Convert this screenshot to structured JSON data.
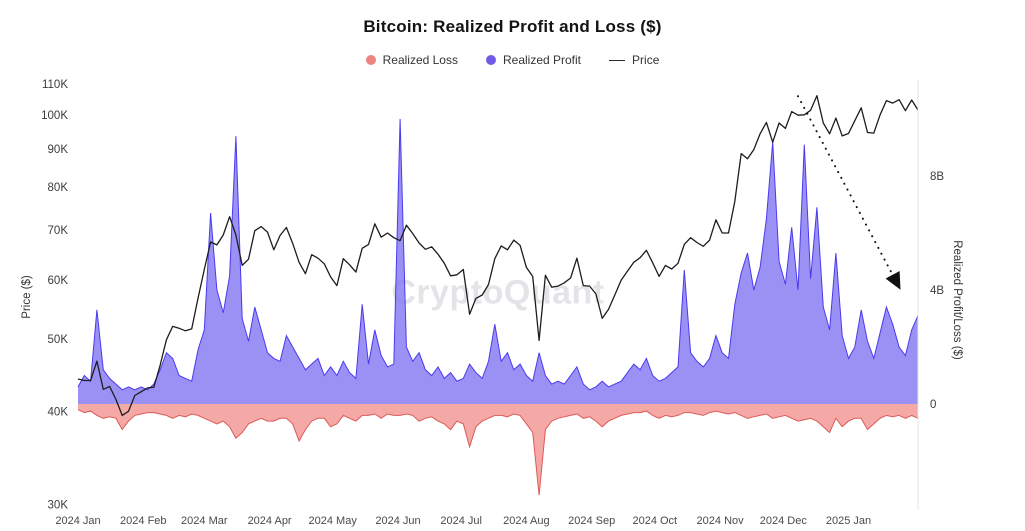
{
  "title": "Bitcoin: Realized Profit and Loss ($)",
  "watermark": "CryptoQuant",
  "legend": [
    {
      "label": "Realized Loss",
      "color": "#ee837f",
      "type": "dot"
    },
    {
      "label": "Realized Profit",
      "color": "#6f5be8",
      "type": "dot"
    },
    {
      "label": "Price",
      "color": "#2a2a2a",
      "type": "line"
    }
  ],
  "chart_data": {
    "type": "combo",
    "title": "Bitcoin: Realized Profit and Loss ($)",
    "sample_interval_days": 3,
    "total_days": 399,
    "axes": {
      "left": {
        "label": "Price ($)",
        "scale": "log",
        "unit": "USD thousands",
        "ticks": [
          {
            "label": "110K",
            "value": 110
          },
          {
            "label": "100K",
            "value": 100
          },
          {
            "label": "90K",
            "value": 90
          },
          {
            "label": "80K",
            "value": 80
          },
          {
            "label": "70K",
            "value": 70
          },
          {
            "label": "60K",
            "value": 60
          },
          {
            "label": "50K",
            "value": 50
          },
          {
            "label": "40K",
            "value": 40
          },
          {
            "label": "30K",
            "value": 30
          }
        ]
      },
      "right": {
        "label": "Realized Profit/Loss ($)",
        "scale": "linear",
        "unit": "USD billions",
        "ticks": [
          {
            "label": "8B",
            "value": 8
          },
          {
            "label": "4B",
            "value": 4
          },
          {
            "label": "0",
            "value": 0
          }
        ]
      },
      "x": {
        "ticks": [
          {
            "label": "2024 Jan",
            "day": 0
          },
          {
            "label": "2024 Feb",
            "day": 31
          },
          {
            "label": "2024 Mar",
            "day": 60
          },
          {
            "label": "2024 Apr",
            "day": 91
          },
          {
            "label": "2024 May",
            "day": 121
          },
          {
            "label": "2024 Jun",
            "day": 152
          },
          {
            "label": "2024 Jul",
            "day": 182
          },
          {
            "label": "2024 Aug",
            "day": 213
          },
          {
            "label": "2024 Sep",
            "day": 244
          },
          {
            "label": "2024 Oct",
            "day": 274
          },
          {
            "label": "2024 Nov",
            "day": 305
          },
          {
            "label": "2024 Dec",
            "day": 335
          },
          {
            "label": "2025 Jan",
            "day": 366
          }
        ]
      }
    },
    "series": [
      {
        "name": "Realized Loss",
        "type": "area",
        "axis": "right",
        "unit": "B",
        "color": "#f19490",
        "line_color": "#dd5a57",
        "values": [
          -0.2,
          -0.3,
          -0.25,
          -0.4,
          -0.5,
          -0.45,
          -0.5,
          -0.9,
          -0.6,
          -0.4,
          -0.35,
          -0.3,
          -0.3,
          -0.35,
          -0.4,
          -0.5,
          -0.4,
          -0.45,
          -0.35,
          -0.4,
          -0.5,
          -0.6,
          -0.7,
          -0.6,
          -0.8,
          -1.2,
          -1.0,
          -0.7,
          -0.6,
          -0.5,
          -0.6,
          -0.6,
          -0.5,
          -0.5,
          -0.7,
          -1.3,
          -0.9,
          -0.6,
          -0.5,
          -0.5,
          -0.8,
          -0.7,
          -0.4,
          -0.5,
          -0.6,
          -0.4,
          -0.4,
          -0.35,
          -0.5,
          -0.35,
          -0.4,
          -0.4,
          -0.35,
          -0.4,
          -0.6,
          -0.5,
          -0.45,
          -0.6,
          -0.7,
          -0.9,
          -0.6,
          -0.7,
          -1.5,
          -0.8,
          -0.6,
          -0.5,
          -0.4,
          -0.4,
          -0.45,
          -0.35,
          -0.4,
          -0.7,
          -1.0,
          -3.2,
          -0.9,
          -0.6,
          -0.5,
          -0.45,
          -0.4,
          -0.35,
          -0.5,
          -0.45,
          -0.6,
          -0.8,
          -0.6,
          -0.5,
          -0.4,
          -0.35,
          -0.3,
          -0.3,
          -0.25,
          -0.4,
          -0.5,
          -0.4,
          -0.45,
          -0.4,
          -0.3,
          -0.3,
          -0.35,
          -0.4,
          -0.3,
          -0.25,
          -0.3,
          -0.35,
          -0.3,
          -0.4,
          -0.5,
          -0.45,
          -0.4,
          -0.35,
          -0.5,
          -0.45,
          -0.4,
          -0.5,
          -0.6,
          -0.55,
          -0.5,
          -0.6,
          -0.8,
          -1.0,
          -0.5,
          -0.8,
          -0.6,
          -0.5,
          -0.5,
          -0.9,
          -0.7,
          -0.5,
          -0.4,
          -0.45,
          -0.4,
          -0.5,
          -0.4,
          -0.5
        ]
      },
      {
        "name": "Realized Profit",
        "type": "area",
        "axis": "right",
        "unit": "B",
        "color": "#8579f3",
        "line_color": "#4a3aee",
        "values": [
          0.6,
          1.0,
          0.8,
          3.3,
          1.2,
          0.9,
          0.7,
          0.5,
          0.6,
          0.5,
          0.6,
          0.5,
          0.7,
          1.2,
          1.8,
          1.6,
          1.0,
          0.9,
          0.8,
          1.9,
          2.6,
          6.7,
          4.0,
          3.2,
          4.5,
          9.4,
          3.0,
          2.2,
          3.4,
          2.6,
          1.8,
          1.6,
          1.5,
          2.4,
          2.0,
          1.6,
          1.2,
          1.4,
          1.6,
          1.0,
          1.3,
          1.0,
          1.5,
          1.1,
          0.9,
          3.5,
          1.4,
          2.6,
          1.7,
          1.3,
          1.4,
          10.0,
          2.0,
          1.5,
          1.8,
          1.2,
          1.0,
          1.3,
          0.9,
          1.1,
          0.8,
          0.9,
          1.4,
          1.1,
          0.9,
          1.5,
          2.8,
          1.5,
          1.8,
          1.2,
          1.4,
          1.0,
          0.8,
          1.8,
          1.0,
          0.7,
          0.8,
          0.7,
          1.0,
          1.3,
          0.7,
          0.5,
          0.6,
          0.8,
          0.6,
          0.7,
          0.8,
          1.1,
          1.4,
          1.2,
          1.6,
          1.0,
          0.8,
          0.9,
          1.1,
          1.3,
          4.7,
          1.8,
          1.5,
          1.3,
          1.6,
          2.4,
          1.8,
          1.6,
          3.5,
          4.6,
          5.3,
          4.0,
          4.8,
          6.5,
          9.2,
          5.0,
          4.2,
          6.2,
          4.0,
          9.1,
          4.4,
          6.9,
          3.4,
          2.6,
          5.3,
          2.4,
          1.6,
          2.0,
          3.3,
          2.2,
          1.6,
          2.5,
          3.4,
          2.8,
          2.0,
          1.7,
          2.6,
          3.1
        ]
      },
      {
        "name": "Price",
        "type": "line",
        "axis": "left",
        "unit": "K",
        "color": "#1d1d1f",
        "line_color": "#1d1d1f",
        "values": [
          44.2,
          44.0,
          44.0,
          46.7,
          42.8,
          43.2,
          41.5,
          39.5,
          40.0,
          42.0,
          42.5,
          43.0,
          43.1,
          46.1,
          49.9,
          52.0,
          51.7,
          51.3,
          51.6,
          56.7,
          62.0,
          67.5,
          66.9,
          69.0,
          73.0,
          69.0,
          62.8,
          64.0,
          69.9,
          70.8,
          69.6,
          65.9,
          68.9,
          70.6,
          67.2,
          63.4,
          61.2,
          64.9,
          64.2,
          63.1,
          60.6,
          59.0,
          64.1,
          62.9,
          61.5,
          66.2,
          67.0,
          71.4,
          68.5,
          69.4,
          68.4,
          67.8,
          71.1,
          69.3,
          67.3,
          66.0,
          66.5,
          65.0,
          63.2,
          60.8,
          61.0,
          62.0,
          54.0,
          56.7,
          57.3,
          59.2,
          64.1,
          66.7,
          65.9,
          67.9,
          66.8,
          62.4,
          60.7,
          49.8,
          60.9,
          58.7,
          58.9,
          59.5,
          60.4,
          64.2,
          59.0,
          58.9,
          57.5,
          53.3,
          54.8,
          57.3,
          60.0,
          61.7,
          63.4,
          64.3,
          65.8,
          63.3,
          60.7,
          62.8,
          62.1,
          63.2,
          67.0,
          68.4,
          67.4,
          66.6,
          67.9,
          72.3,
          69.4,
          69.4,
          76.5,
          88.7,
          87.3,
          89.8,
          94.3,
          97.7,
          91.9,
          97.5,
          95.9,
          101.0,
          99.9,
          100.0,
          101.4,
          106.1,
          97.5,
          94.3,
          99.0,
          93.7,
          94.4,
          98.2,
          102.2,
          94.7,
          94.5,
          100.0,
          104.5,
          103.7,
          104.8,
          101.3,
          104.7,
          101.5
        ]
      }
    ],
    "annotations": [
      {
        "type": "dotted-arrow",
        "from": {
          "day": 342,
          "value_b": 10.8
        },
        "to": {
          "day": 390,
          "value_b": 4.1
        }
      }
    ]
  }
}
